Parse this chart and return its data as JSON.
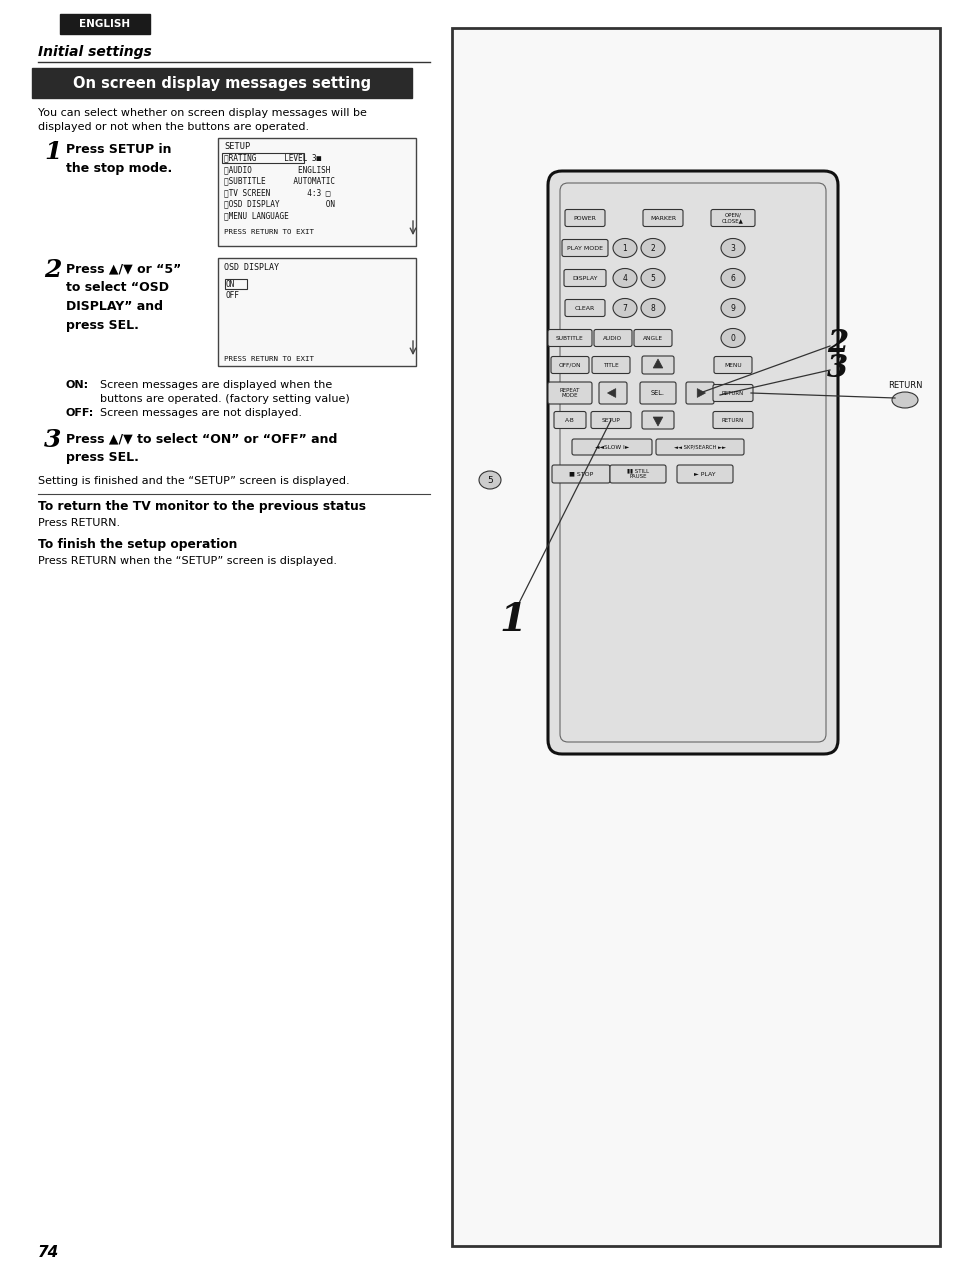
{
  "page_bg": "#ffffff",
  "page_width": 9.54,
  "page_height": 12.69,
  "english_label": "ENGLISH",
  "english_bg": "#1a1a1a",
  "english_color": "#ffffff",
  "section_title": "Initial settings",
  "header_title": "On screen display messages setting",
  "header_bg": "#2a2a2a",
  "header_color": "#ffffff",
  "intro_text": "You can select whether on screen display messages will be\ndisplayed or not when the buttons are operated.",
  "step1_num": "1",
  "step1_bold": "Press SETUP in\nthe stop mode.",
  "step2_num": "2",
  "step2_bold": "Press ▲/▼ or “5”\nto select “OSD\nDISPLAY” and\npress SEL.",
  "step3_num": "3",
  "step3_bold": "Press ▲/▼ to select “ON” or “OFF” and\npress SEL.",
  "on_label": "ON:",
  "on_text": "Screen messages are displayed when the\nbuttons are operated. (factory setting value)",
  "off_label": "OFF:",
  "off_text": "Screen messages are not displayed.",
  "setting_done": "Setting is finished and the “SETUP” screen is displayed.",
  "return_title": "To return the TV monitor to the previous status",
  "return_text": "Press RETURN.",
  "finish_title": "To finish the setup operation",
  "finish_text": "Press RETURN when the “SETUP” screen is displayed.",
  "page_num": "74"
}
